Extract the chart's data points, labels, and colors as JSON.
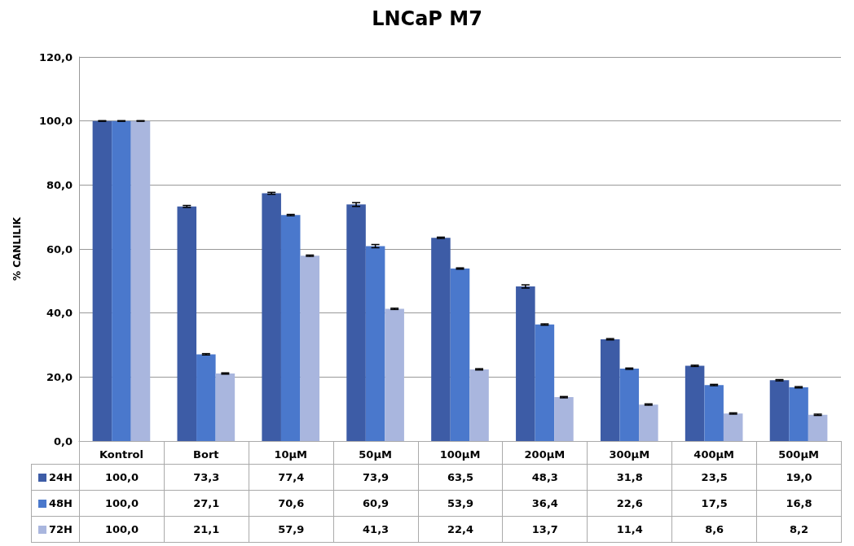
{
  "chart_data": {
    "type": "bar",
    "title": "LNCaP M7",
    "ylabel": "% CANLILIK",
    "categories": [
      "Kontrol",
      "Bort",
      "10µM",
      "50µM",
      "100µM",
      "200µM",
      "300µM",
      "400µM",
      "500µM"
    ],
    "series": [
      {
        "name": "24H",
        "color": "#3d5ca6",
        "values": [
          100.0,
          73.3,
          77.4,
          73.9,
          63.5,
          48.3,
          31.8,
          23.5,
          19.0
        ],
        "errors": [
          0.1,
          0.3,
          0.3,
          0.6,
          0.2,
          0.5,
          0.2,
          0.2,
          0.2
        ],
        "value_labels": [
          "100,0",
          "73,3",
          "77,4",
          "73,9",
          "63,5",
          "48,3",
          "31,8",
          "23,5",
          "19,0"
        ]
      },
      {
        "name": "48H",
        "color": "#4a78cc",
        "values": [
          100.0,
          27.1,
          70.6,
          60.9,
          53.9,
          36.4,
          22.6,
          17.5,
          16.8
        ],
        "errors": [
          0.1,
          0.2,
          0.2,
          0.5,
          0.2,
          0.2,
          0.2,
          0.2,
          0.2
        ],
        "value_labels": [
          "100,0",
          "27,1",
          "70,6",
          "60,9",
          "53,9",
          "36,4",
          "22,6",
          "17,5",
          "16,8"
        ]
      },
      {
        "name": "72H",
        "color": "#a9b6de",
        "values": [
          100.0,
          21.1,
          57.9,
          41.3,
          22.4,
          13.7,
          11.4,
          8.6,
          8.2
        ],
        "errors": [
          0.1,
          0.2,
          0.2,
          0.2,
          0.2,
          0.2,
          0.2,
          0.2,
          0.2
        ],
        "value_labels": [
          "100,0",
          "21,1",
          "57,9",
          "41,3",
          "22,4",
          "13,7",
          "11,4",
          "8,6",
          "8,2"
        ]
      }
    ],
    "ylim": [
      0,
      120
    ],
    "yticks": [
      {
        "value": 0,
        "label": "0,0"
      },
      {
        "value": 20,
        "label": "20,0"
      },
      {
        "value": 40,
        "label": "40,0"
      },
      {
        "value": 60,
        "label": "60,0"
      },
      {
        "value": 80,
        "label": "80,0"
      },
      {
        "value": 100,
        "label": "100,0"
      },
      {
        "value": 120,
        "label": "120,0"
      }
    ],
    "grid": "y",
    "legend": "bottom"
  }
}
